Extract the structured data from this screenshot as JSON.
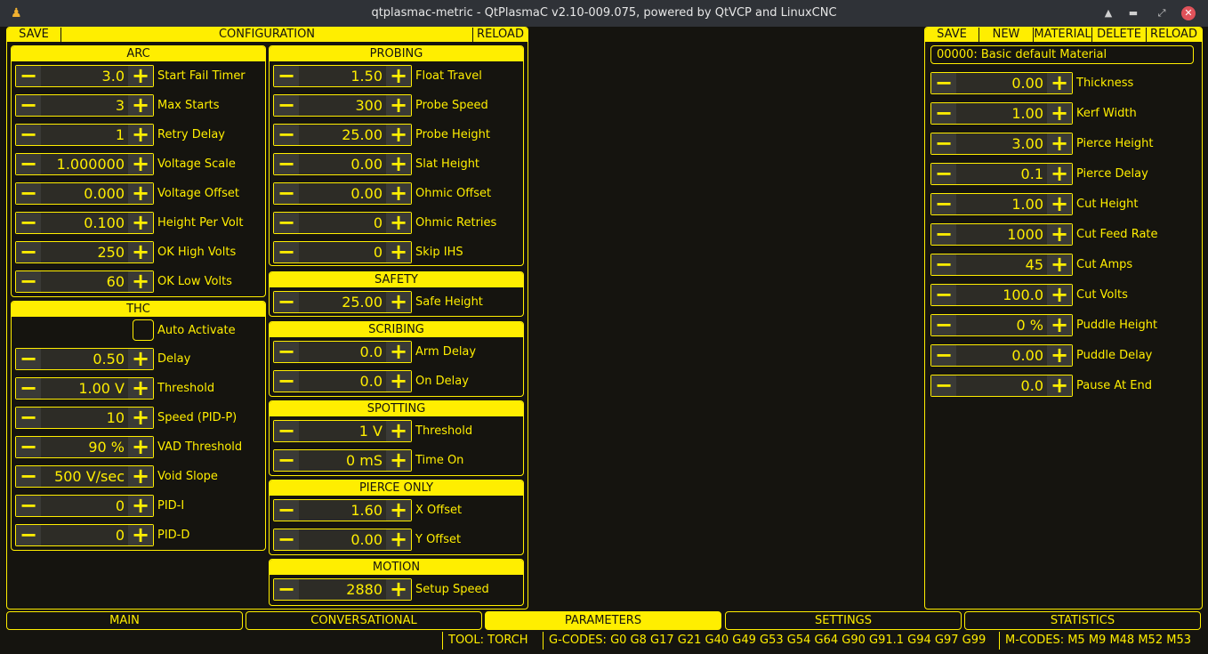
{
  "window": {
    "title": "qtplasmac-metric - QtPlasmaC v2.10-009.075, powered by QtVCP and LinuxCNC"
  },
  "config": {
    "save": "SAVE",
    "title": "CONFIGURATION",
    "reload": "RELOAD"
  },
  "groups": [
    {
      "title": "ARC",
      "rows": [
        [
          "3.0",
          "Start Fail Timer"
        ],
        [
          "3",
          "Max Starts"
        ],
        [
          "1",
          "Retry Delay"
        ],
        [
          "1.000000",
          "Voltage Scale"
        ],
        [
          "0.000",
          "Voltage Offset"
        ],
        [
          "0.100",
          "Height Per Volt"
        ],
        [
          "250",
          "OK High Volts"
        ],
        [
          "60",
          "OK Low Volts"
        ]
      ]
    },
    {
      "title": "THC",
      "checkbox": {
        "label": "Auto Activate",
        "checked": false
      },
      "rows": [
        [
          "0.50",
          "Delay"
        ],
        [
          "1.00 V",
          "Threshold"
        ],
        [
          "10",
          "Speed (PID-P)"
        ],
        [
          "90 %",
          "VAD Threshold"
        ],
        [
          "500 V/sec",
          "Void Slope"
        ],
        [
          "0",
          "PID-I"
        ],
        [
          "0",
          "PID-D"
        ]
      ]
    },
    {
      "title": "PROBING",
      "rows": [
        [
          "1.50",
          "Float Travel"
        ],
        [
          "300",
          "Probe Speed"
        ],
        [
          "25.00",
          "Probe Height"
        ],
        [
          "0.00",
          "Slat Height"
        ],
        [
          "0.00",
          "Ohmic Offset"
        ],
        [
          "0",
          "Ohmic Retries"
        ],
        [
          "0",
          "Skip IHS"
        ]
      ]
    },
    {
      "title": "SAFETY",
      "rows": [
        [
          "25.00",
          "Safe Height"
        ]
      ]
    },
    {
      "title": "SCRIBING",
      "rows": [
        [
          "0.0",
          "Arm Delay"
        ],
        [
          "0.0",
          "On Delay"
        ]
      ]
    },
    {
      "title": "SPOTTING",
      "rows": [
        [
          "1 V",
          "Threshold"
        ],
        [
          "0 mS",
          "Time On"
        ]
      ]
    },
    {
      "title": "PIERCE ONLY",
      "rows": [
        [
          "1.60",
          "X Offset"
        ],
        [
          "0.00",
          "Y Offset"
        ]
      ]
    },
    {
      "title": "MOTION",
      "rows": [
        [
          "2880",
          "Setup Speed"
        ]
      ]
    }
  ],
  "material": {
    "buttons": [
      "SAVE",
      "NEW",
      "MATERIAL",
      "DELETE",
      "RELOAD"
    ],
    "selected": "00000: Basic default Material",
    "rows": [
      [
        "0.00",
        "Thickness"
      ],
      [
        "1.00",
        "Kerf Width"
      ],
      [
        "3.00",
        "Pierce Height"
      ],
      [
        "0.1",
        "Pierce Delay"
      ],
      [
        "1.00",
        "Cut Height"
      ],
      [
        "1000",
        "Cut Feed Rate"
      ],
      [
        "45",
        "Cut Amps"
      ],
      [
        "100.0",
        "Cut Volts"
      ],
      [
        "0 %",
        "Puddle Height"
      ],
      [
        "0.00",
        "Puddle Delay"
      ],
      [
        "0.0",
        "Pause At End"
      ]
    ]
  },
  "tabs": [
    {
      "label": "MAIN"
    },
    {
      "label": "CONVERSATIONAL"
    },
    {
      "label": "PARAMETERS",
      "active": true
    },
    {
      "label": "SETTINGS"
    },
    {
      "label": "STATISTICS"
    }
  ],
  "status": {
    "tool": "TOOL:  TORCH",
    "gcodes": "G-CODES:  G0 G8 G17 G21 G40 G49 G53 G54 G64 G90 G91.1 G94 G97 G99",
    "mcodes": "M-CODES:  M5 M9 M48 M52 M53"
  },
  "colors": {
    "accent": "#ffee00",
    "background": "#15140f"
  }
}
